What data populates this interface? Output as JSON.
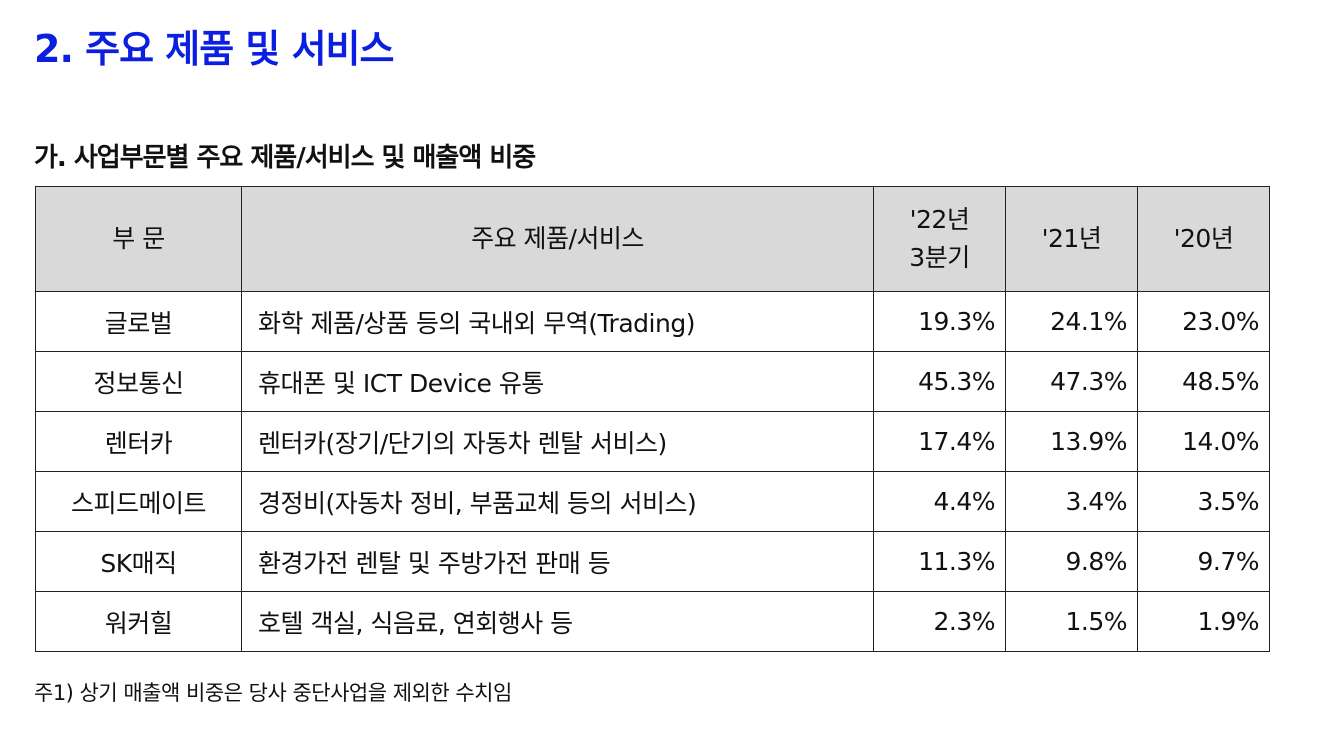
{
  "title": "2. 주요 제품 및 서비스",
  "subtitle": "가. 사업부문별 주요 제품/서비스 및 매출액 비중",
  "table": {
    "headers": {
      "segment": "부 문",
      "products": "주요 제품/서비스",
      "q3_2022_line1": "'22년",
      "q3_2022_line2": "3분기",
      "y2021": "'21년",
      "y2020": "'20년"
    },
    "rows": [
      {
        "segment": "글로벌",
        "products": "화학 제품/상품 등의 국내외 무역(Trading)",
        "q3_2022": "19.3%",
        "y2021": "24.1%",
        "y2020": "23.0%"
      },
      {
        "segment": "정보통신",
        "products": "휴대폰 및 ICT Device 유통",
        "q3_2022": "45.3%",
        "y2021": "47.3%",
        "y2020": "48.5%"
      },
      {
        "segment": "렌터카",
        "products": "렌터카(장기/단기의 자동차 렌탈 서비스)",
        "q3_2022": "17.4%",
        "y2021": "13.9%",
        "y2020": "14.0%"
      },
      {
        "segment": "스피드메이트",
        "products": "경정비(자동차 정비, 부품교체 등의 서비스)",
        "q3_2022": "4.4%",
        "y2021": "3.4%",
        "y2020": "3.5%"
      },
      {
        "segment": "SK매직",
        "products": "환경가전 렌탈 및 주방가전 판매 등",
        "q3_2022": "11.3%",
        "y2021": "9.8%",
        "y2020": "9.7%"
      },
      {
        "segment": "워커힐",
        "products": "호텔 객실, 식음료, 연회행사 등",
        "q3_2022": "2.3%",
        "y2021": "1.5%",
        "y2020": "1.9%"
      }
    ]
  },
  "footnote": "주1) 상기 매출액 비중은 당사 중단사업을 제외한 수치임"
}
